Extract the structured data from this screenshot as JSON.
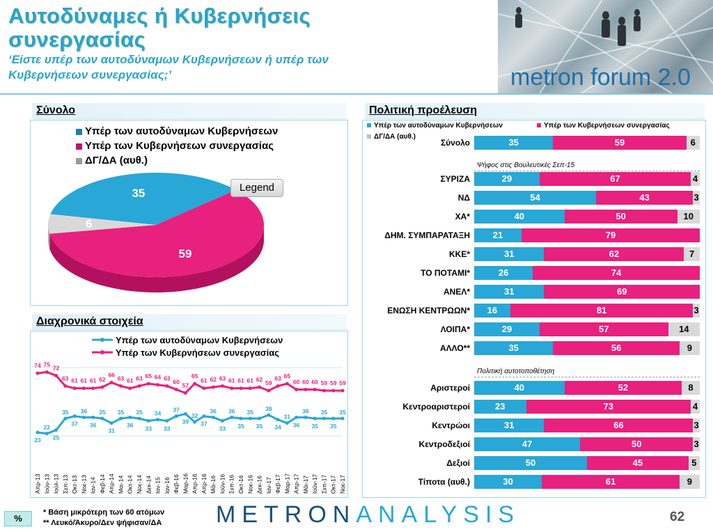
{
  "title": {
    "line1": "Αυτοδύναμες ή Κυβερνήσεις",
    "line2": "συνεργασίας",
    "question1": "‘Είστε υπέρ των αυτοδύναμων Κυβερνήσεων ή υπέρ των",
    "question2": "Κυβερνήσεων συνεργασίας;’"
  },
  "brand_banner": "metron forum 2.0",
  "colors": {
    "blue": "#29a7d6",
    "pink": "#e8207e",
    "gray": "#d9d9d9"
  },
  "panels": {
    "total": "Σύνολο",
    "trend": "Διαχρονικά στοιχεία",
    "political": "Πολιτική προέλευση"
  },
  "legend_labels": {
    "single": "Υπέρ των αυτοδύναμων Κυβερνήσεων",
    "coalition": "Υπέρ των Κυβερνήσεων συνεργασίας",
    "dk": "ΔΓ/ΔΑ (αυθ.)",
    "popup": "Legend"
  },
  "chart_data": [
    {
      "type": "pie",
      "labels": [
        "Υπέρ των αυτοδύναμων Κυβερνήσεων",
        "Υπέρ των Κυβερνήσεων συνεργασίας",
        "ΔΓ/ΔΑ (αυθ.)"
      ],
      "values": [
        35,
        59,
        6
      ]
    },
    {
      "type": "line",
      "x": [
        "Απρ-13",
        "Ιούν-13",
        "Ιούλ-13",
        "Σεπ-13",
        "Οκτ-13",
        "Νοε-13",
        "Ιαν-14",
        "Φεβ-14",
        "Απρ-14",
        "Μαι-14",
        "Οκτ-14",
        "Νοε-14",
        "Δεκ-14",
        "Ιαν-15",
        "Ιαν-16",
        "Φεβ-16",
        "Μαρ-16",
        "Απρ-16",
        "Απρ-16",
        "Μάι-16",
        "Ιούν-16",
        "Σεπ-16",
        "Οκτ-16",
        "Νοε-16",
        "Δεκ-16",
        "Ιαν-17",
        "Φεβ-17",
        "Μαρ-17",
        "Απρ-17",
        "Μάι-17",
        "Ιούν-17",
        "Σεπ-17",
        "Οκτ-17",
        "Νοε-17"
      ],
      "series": [
        {
          "name": "Υπέρ των αυτοδύναμων Κυβερνήσεων",
          "values": [
            23,
            22,
            25,
            35,
            37,
            36,
            36,
            35,
            31,
            35,
            36,
            35,
            33,
            34,
            33,
            37,
            39,
            32,
            37,
            36,
            33,
            36,
            35,
            35,
            35,
            38,
            34,
            31,
            36,
            36,
            35,
            35,
            35,
            35
          ]
        },
        {
          "name": "Υπέρ των Κυβερνήσεων συνεργασίας",
          "values": [
            74,
            75,
            72,
            63,
            61,
            61,
            61,
            62,
            66,
            63,
            61,
            63,
            65,
            64,
            63,
            60,
            57,
            65,
            61,
            62,
            63,
            61,
            61,
            61,
            62,
            59,
            63,
            65,
            60,
            60,
            60,
            59,
            59,
            59
          ]
        }
      ]
    },
    {
      "type": "bar",
      "orientation": "horizontal-stacked",
      "legend": [
        "Υπέρ των αυτοδύναμων Κυβερνήσεων",
        "Υπέρ των Κυβερνήσεων συνεργασίας",
        "ΔΓ/ΔΑ (αυθ.)"
      ],
      "groups": [
        {
          "title": "",
          "rows": [
            {
              "label": "Σύνολο",
              "values": [
                35,
                59,
                6
              ]
            }
          ]
        },
        {
          "title": "Ψήφος στις Βουλευτικές Σεπ-15",
          "rows": [
            {
              "label": "ΣΥΡΙΖΑ",
              "values": [
                29,
                67,
                4
              ]
            },
            {
              "label": "ΝΔ",
              "values": [
                54,
                43,
                3
              ]
            },
            {
              "label": "ΧΑ*",
              "values": [
                40,
                50,
                10
              ]
            },
            {
              "label": "ΔΗΜ. ΣΥΜΠΑΡΑΤΑΞΗ",
              "values": [
                21,
                79,
                0
              ]
            },
            {
              "label": "ΚΚΕ*",
              "values": [
                31,
                62,
                7
              ]
            },
            {
              "label": "ΤΟ ΠΟΤΑΜΙ*",
              "values": [
                26,
                74,
                0
              ]
            },
            {
              "label": "ΑΝΕΛ*",
              "values": [
                31,
                69,
                0
              ]
            },
            {
              "label": "ΕΝΩΣΗ ΚΕΝΤΡΩΩΝ*",
              "values": [
                16,
                81,
                3
              ]
            },
            {
              "label": "ΛΟΙΠΑ*",
              "values": [
                29,
                57,
                14
              ]
            },
            {
              "label": "ΑΛΛΟ**",
              "values": [
                35,
                56,
                9
              ]
            }
          ]
        },
        {
          "title": "Πολιτική αυτοτοποθέτηση",
          "rows": [
            {
              "label": "Αριστεροί",
              "values": [
                40,
                52,
                8
              ]
            },
            {
              "label": "Κεντροαριστεροί",
              "values": [
                23,
                73,
                4
              ]
            },
            {
              "label": "Κεντρώοι",
              "values": [
                31,
                66,
                3
              ]
            },
            {
              "label": "Κεντροδεξιοί",
              "values": [
                47,
                50,
                3
              ]
            },
            {
              "label": "Δεξιοί",
              "values": [
                50,
                45,
                5
              ]
            },
            {
              "label": "Τίποτα (αυθ.)",
              "values": [
                30,
                61,
                9
              ]
            }
          ]
        }
      ]
    }
  ],
  "footer": {
    "note1": "*  Βάση μικρότερη των 60 ατόμων",
    "note2": "** Λευκό/Άκυρο/Δεν ψήφισαν/ΔΑ",
    "percent": "%",
    "logo_a": "METRON",
    "logo_b": "ANALYSIS",
    "page": "62"
  }
}
